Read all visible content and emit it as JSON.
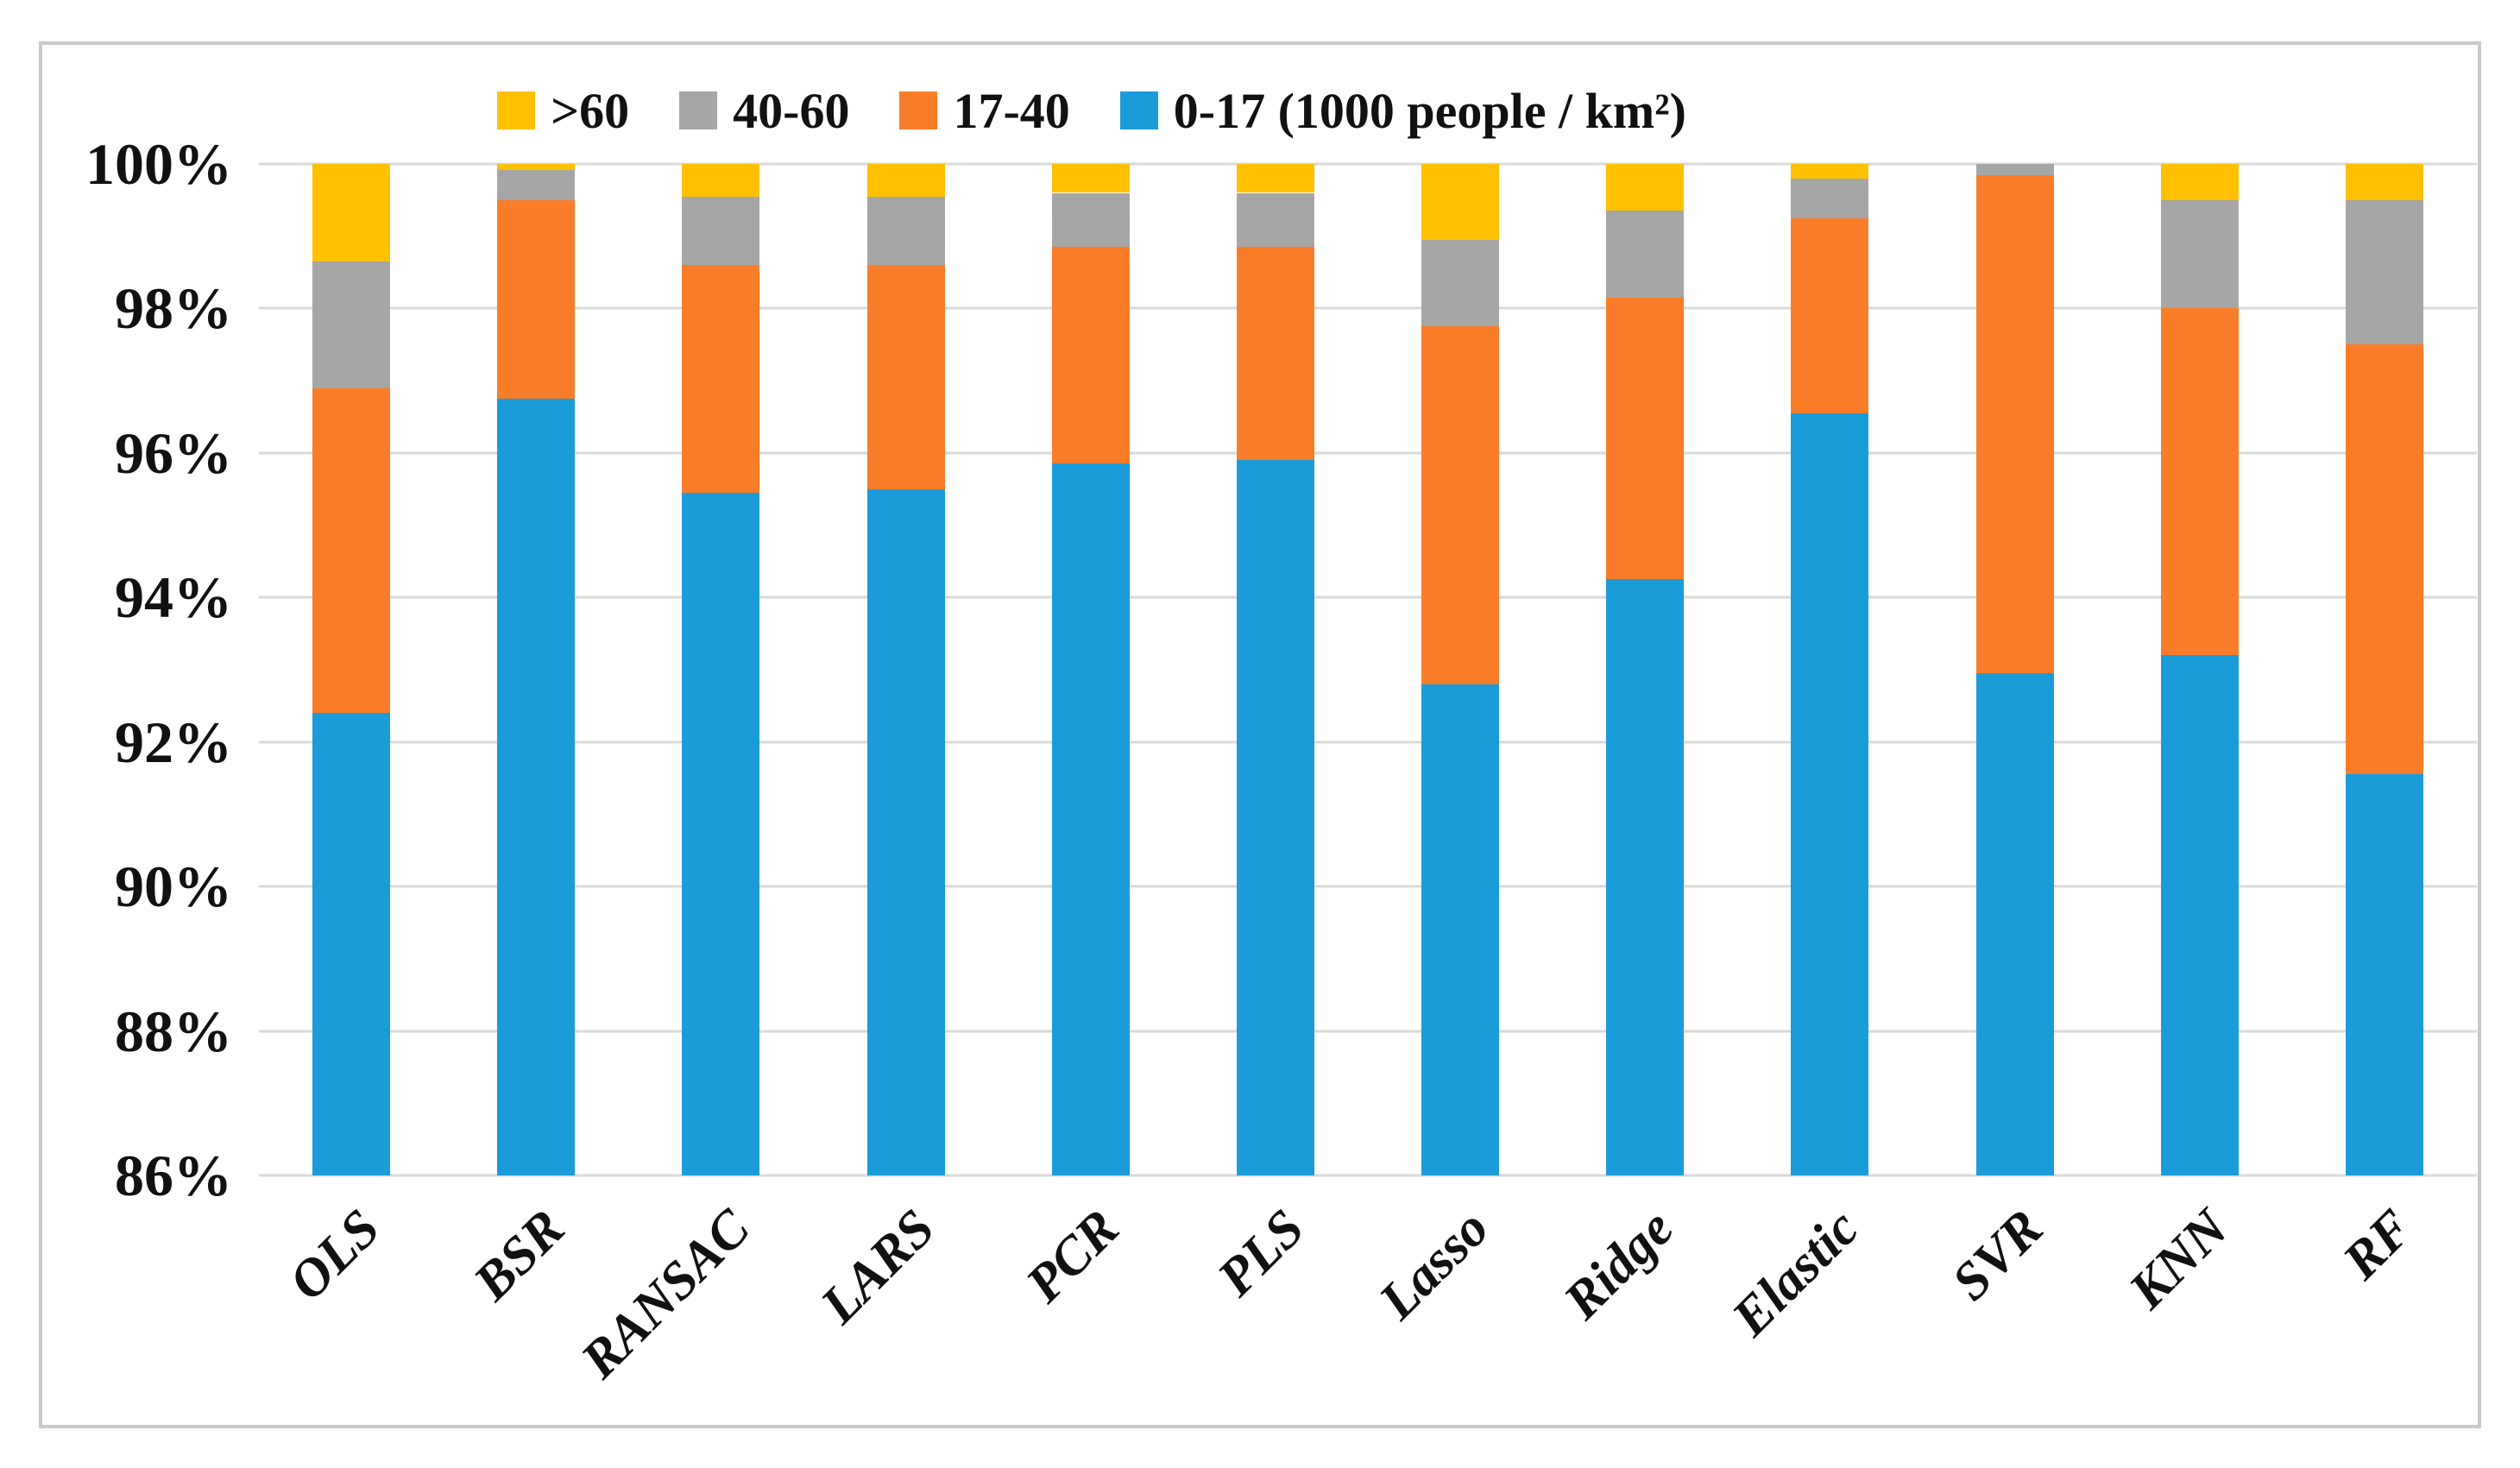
{
  "chart_data": {
    "type": "bar",
    "stacked": true,
    "units": "percent",
    "title": "",
    "xlabel": "",
    "ylabel": "",
    "grid": true,
    "categories": [
      "OLS",
      "BSR",
      "RANSAC",
      "LARS",
      "PCR",
      "PLS",
      "Lasso",
      "Ridge",
      "Elastic",
      "SVR",
      "KNN",
      "RF"
    ],
    "series": [
      {
        "name": "0-17 (1000 people / km²)",
        "color": "#1c9bd9",
        "values": [
          92.4,
          96.75,
          95.45,
          95.5,
          95.85,
          95.9,
          92.8,
          94.25,
          96.55,
          92.95,
          93.2,
          91.55
        ]
      },
      {
        "name": "17-40",
        "color": "#f97d28",
        "values": [
          4.5,
          2.75,
          3.15,
          3.1,
          3.0,
          2.95,
          4.95,
          3.9,
          2.7,
          6.9,
          4.8,
          5.95
        ]
      },
      {
        "name": "40-60",
        "color": "#a6a6a6",
        "values": [
          1.75,
          0.42,
          0.95,
          0.95,
          0.75,
          0.75,
          1.2,
          1.2,
          0.55,
          0.15,
          1.5,
          2.0
        ]
      },
      {
        "name": ">60",
        "color": "#ffc000",
        "values": [
          1.35,
          0.08,
          0.45,
          0.45,
          0.4,
          0.4,
          1.05,
          0.65,
          0.2,
          0.0,
          0.5,
          0.5
        ]
      }
    ],
    "legend": {
      "position": "top",
      "order": [
        ">60",
        "40-60",
        "17-40",
        "0-17 (1000 people / km²)"
      ]
    },
    "y_axis": {
      "min": 86,
      "max": 100,
      "tick_step": 2,
      "tick_labels": [
        "86%",
        "88%",
        "90%",
        "92%",
        "94%",
        "96%",
        "98%",
        "100%"
      ]
    },
    "colors": {
      "gridline": "#d9d9d9",
      "frame": "#c9c9c9",
      "background": "#ffffff",
      "text": "#111111"
    }
  }
}
